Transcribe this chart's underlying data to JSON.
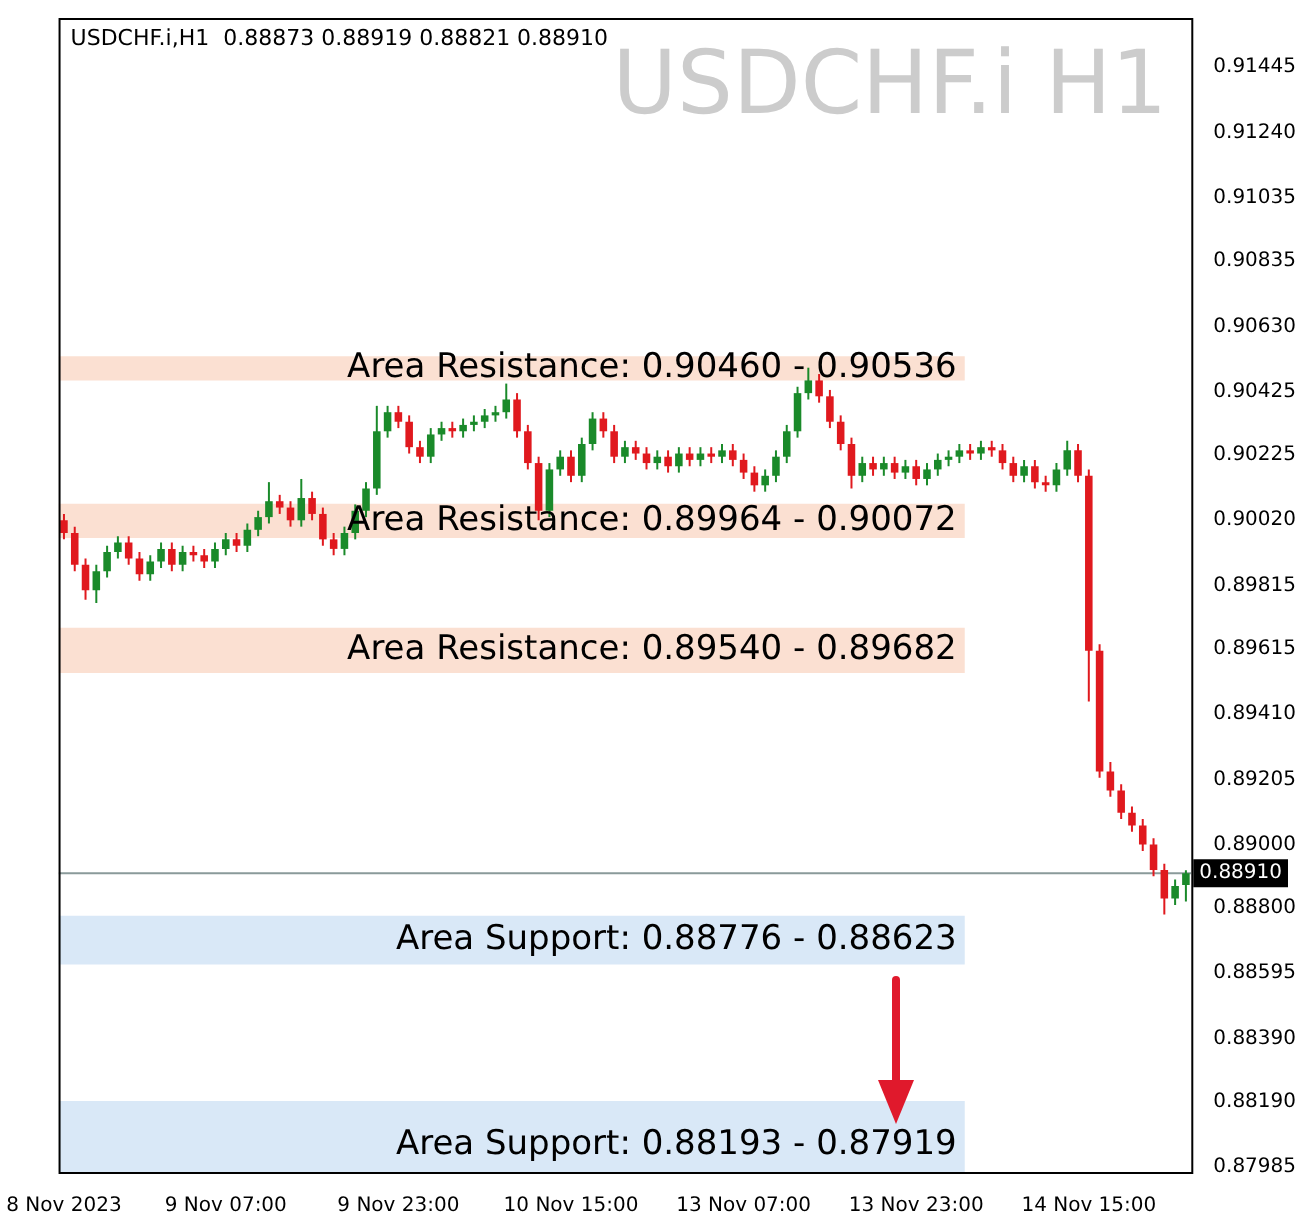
{
  "chart_data": {
    "type": "candlestick",
    "title": "USDCHF.i H1",
    "annotations": [
      "USDCHF.i,H1  0.88873 0.88919 0.88821 0.88910"
    ],
    "categories": [
      "8 Nov 2023",
      null,
      null,
      null,
      null,
      null,
      null,
      null,
      null,
      null,
      null,
      null,
      null,
      null,
      null,
      "9 Nov 07:00",
      null,
      null,
      null,
      null,
      null,
      null,
      null,
      null,
      null,
      null,
      null,
      null,
      null,
      null,
      null,
      "9 Nov 23:00",
      null,
      null,
      null,
      null,
      null,
      null,
      null,
      null,
      null,
      null,
      null,
      null,
      null,
      null,
      null,
      "10 Nov 15:00",
      null,
      null,
      null,
      null,
      null,
      null,
      null,
      null,
      null,
      null,
      null,
      null,
      null,
      null,
      null,
      "13 Nov 07:00",
      null,
      null,
      null,
      null,
      null,
      null,
      null,
      null,
      null,
      null,
      null,
      null,
      null,
      null,
      null,
      "13 Nov 23:00",
      null,
      null,
      null,
      null,
      null,
      null,
      null,
      null,
      null,
      null,
      null,
      null,
      null,
      null,
      null,
      "14 Nov 15:00",
      null,
      null,
      null,
      null,
      null,
      null,
      null,
      null,
      null
    ],
    "ohlc": [
      [
        0.9002,
        0.9004,
        0.8996,
        0.8998
      ],
      [
        0.8998,
        0.9,
        0.8986,
        0.8988
      ],
      [
        0.8988,
        0.899,
        0.8977,
        0.898
      ],
      [
        0.898,
        0.8988,
        0.8976,
        0.8986
      ],
      [
        0.8986,
        0.8994,
        0.8984,
        0.8992
      ],
      [
        0.8992,
        0.8997,
        0.899,
        0.8995
      ],
      [
        0.8995,
        0.8997,
        0.8988,
        0.899
      ],
      [
        0.899,
        0.8992,
        0.8983,
        0.8985
      ],
      [
        0.8985,
        0.8991,
        0.8983,
        0.8989
      ],
      [
        0.8989,
        0.8995,
        0.8987,
        0.8993
      ],
      [
        0.8993,
        0.8995,
        0.8986,
        0.8988
      ],
      [
        0.8988,
        0.8994,
        0.8986,
        0.8992
      ],
      [
        0.8992,
        0.8994,
        0.8989,
        0.8991
      ],
      [
        0.8991,
        0.8993,
        0.8987,
        0.8989
      ],
      [
        0.8989,
        0.8995,
        0.8987,
        0.8993
      ],
      [
        0.8993,
        0.8998,
        0.8991,
        0.8996
      ],
      [
        0.8996,
        0.8998,
        0.8992,
        0.8994
      ],
      [
        0.8994,
        0.9001,
        0.8992,
        0.8999
      ],
      [
        0.8999,
        0.9005,
        0.8997,
        0.9003
      ],
      [
        0.9003,
        0.9014,
        0.9001,
        0.9008
      ],
      [
        0.9008,
        0.901,
        0.9004,
        0.9006
      ],
      [
        0.9006,
        0.9008,
        0.9,
        0.9002
      ],
      [
        0.9002,
        0.9015,
        0.9,
        0.9009
      ],
      [
        0.9009,
        0.9011,
        0.9002,
        0.9004
      ],
      [
        0.9004,
        0.9006,
        0.8994,
        0.8996
      ],
      [
        0.8996,
        0.8998,
        0.8991,
        0.8993
      ],
      [
        0.8993,
        0.9,
        0.8991,
        0.8998
      ],
      [
        0.8998,
        0.9007,
        0.8996,
        0.9005
      ],
      [
        0.9005,
        0.9014,
        0.9003,
        0.9012
      ],
      [
        0.9012,
        0.9038,
        0.901,
        0.903
      ],
      [
        0.903,
        0.9038,
        0.9028,
        0.9036
      ],
      [
        0.9036,
        0.9038,
        0.9031,
        0.9033
      ],
      [
        0.9033,
        0.9035,
        0.9023,
        0.9025
      ],
      [
        0.9025,
        0.9027,
        0.902,
        0.9022
      ],
      [
        0.9022,
        0.9031,
        0.902,
        0.9029
      ],
      [
        0.9029,
        0.9033,
        0.9027,
        0.9031
      ],
      [
        0.9031,
        0.9033,
        0.9028,
        0.903
      ],
      [
        0.903,
        0.9034,
        0.9028,
        0.9032
      ],
      [
        0.9032,
        0.9035,
        0.903,
        0.9033
      ],
      [
        0.9033,
        0.9037,
        0.9031,
        0.9035
      ],
      [
        0.9035,
        0.9038,
        0.9033,
        0.9036
      ],
      [
        0.9036,
        0.9045,
        0.9034,
        0.904
      ],
      [
        0.904,
        0.9042,
        0.9028,
        0.903
      ],
      [
        0.903,
        0.9032,
        0.9018,
        0.902
      ],
      [
        0.902,
        0.9022,
        0.9002,
        0.9005
      ],
      [
        0.9005,
        0.902,
        0.9003,
        0.9018
      ],
      [
        0.9018,
        0.9024,
        0.9016,
        0.9022
      ],
      [
        0.9022,
        0.9024,
        0.9014,
        0.9016
      ],
      [
        0.9016,
        0.9028,
        0.9014,
        0.9026
      ],
      [
        0.9026,
        0.9036,
        0.9024,
        0.9034
      ],
      [
        0.9034,
        0.9036,
        0.9028,
        0.903
      ],
      [
        0.903,
        0.9032,
        0.902,
        0.9022
      ],
      [
        0.9022,
        0.9027,
        0.902,
        0.9025
      ],
      [
        0.9025,
        0.9027,
        0.9021,
        0.9023
      ],
      [
        0.9023,
        0.9025,
        0.9018,
        0.902
      ],
      [
        0.902,
        0.9024,
        0.9018,
        0.9022
      ],
      [
        0.9022,
        0.9024,
        0.9017,
        0.9019
      ],
      [
        0.9019,
        0.9025,
        0.9017,
        0.9023
      ],
      [
        0.9023,
        0.9025,
        0.9019,
        0.9021
      ],
      [
        0.9021,
        0.9025,
        0.9019,
        0.9023
      ],
      [
        0.9023,
        0.9025,
        0.902,
        0.9022
      ],
      [
        0.9022,
        0.9026,
        0.902,
        0.9024
      ],
      [
        0.9024,
        0.9026,
        0.9019,
        0.9021
      ],
      [
        0.9021,
        0.9023,
        0.9015,
        0.9017
      ],
      [
        0.9017,
        0.9019,
        0.9011,
        0.9013
      ],
      [
        0.9013,
        0.9018,
        0.9011,
        0.9016
      ],
      [
        0.9016,
        0.9024,
        0.9014,
        0.9022
      ],
      [
        0.9022,
        0.9032,
        0.902,
        0.903
      ],
      [
        0.903,
        0.9044,
        0.9028,
        0.9042
      ],
      [
        0.9042,
        0.905,
        0.904,
        0.9046
      ],
      [
        0.9046,
        0.9048,
        0.9039,
        0.9041
      ],
      [
        0.9041,
        0.9043,
        0.9031,
        0.9033
      ],
      [
        0.9033,
        0.9035,
        0.9024,
        0.9026
      ],
      [
        0.9026,
        0.9028,
        0.9012,
        0.9016
      ],
      [
        0.9016,
        0.9022,
        0.9014,
        0.902
      ],
      [
        0.902,
        0.9022,
        0.9016,
        0.9018
      ],
      [
        0.9018,
        0.9022,
        0.9016,
        0.902
      ],
      [
        0.902,
        0.9022,
        0.9015,
        0.9017
      ],
      [
        0.9017,
        0.9021,
        0.9015,
        0.9019
      ],
      [
        0.9019,
        0.9021,
        0.9013,
        0.9015
      ],
      [
        0.9015,
        0.902,
        0.9013,
        0.9018
      ],
      [
        0.9018,
        0.9023,
        0.9016,
        0.9021
      ],
      [
        0.9021,
        0.9024,
        0.9019,
        0.9022
      ],
      [
        0.9022,
        0.9026,
        0.902,
        0.9024
      ],
      [
        0.9024,
        0.9026,
        0.9021,
        0.9023
      ],
      [
        0.9023,
        0.9027,
        0.9021,
        0.9025
      ],
      [
        0.9025,
        0.9027,
        0.9022,
        0.9024
      ],
      [
        0.9024,
        0.9026,
        0.9018,
        0.902
      ],
      [
        0.902,
        0.9022,
        0.9014,
        0.9016
      ],
      [
        0.9016,
        0.9021,
        0.9014,
        0.9019
      ],
      [
        0.9019,
        0.9021,
        0.9012,
        0.9014
      ],
      [
        0.9014,
        0.9016,
        0.9011,
        0.9013
      ],
      [
        0.9013,
        0.902,
        0.9011,
        0.9018
      ],
      [
        0.9018,
        0.9027,
        0.9016,
        0.9024
      ],
      [
        0.9024,
        0.9026,
        0.9014,
        0.9016
      ],
      [
        0.9016,
        0.9018,
        0.8945,
        0.8961
      ],
      [
        0.8961,
        0.8963,
        0.8921,
        0.8923
      ],
      [
        0.8923,
        0.8926,
        0.8915,
        0.8917
      ],
      [
        0.8917,
        0.8919,
        0.8908,
        0.891
      ],
      [
        0.891,
        0.8912,
        0.8904,
        0.8906
      ],
      [
        0.8906,
        0.8908,
        0.8898,
        0.89
      ],
      [
        0.89,
        0.8902,
        0.889,
        0.8892
      ],
      [
        0.8892,
        0.8894,
        0.8878,
        0.8883
      ],
      [
        0.8883,
        0.8889,
        0.8881,
        0.8887
      ],
      [
        0.88873,
        0.88919,
        0.88821,
        0.8891
      ]
    ],
    "colors": [
      "#e0191e",
      "#e0191e",
      "#e0191e",
      "#1a8a2a",
      "#1a8a2a",
      "#1a8a2a",
      "#e0191e",
      "#e0191e",
      "#1a8a2a",
      "#1a8a2a",
      "#e0191e",
      "#1a8a2a",
      "#e0191e",
      "#e0191e",
      "#1a8a2a",
      "#1a8a2a",
      "#e0191e",
      "#1a8a2a",
      "#1a8a2a",
      "#1a8a2a",
      "#e0191e",
      "#e0191e",
      "#1a8a2a",
      "#e0191e",
      "#e0191e",
      "#e0191e",
      "#1a8a2a",
      "#1a8a2a",
      "#1a8a2a",
      "#1a8a2a",
      "#1a8a2a",
      "#e0191e",
      "#e0191e",
      "#e0191e",
      "#1a8a2a",
      "#1a8a2a",
      "#e0191e",
      "#1a8a2a",
      "#1a8a2a",
      "#1a8a2a",
      "#1a8a2a",
      "#1a8a2a",
      "#e0191e",
      "#e0191e",
      "#e0191e",
      "#1a8a2a",
      "#1a8a2a",
      "#e0191e",
      "#1a8a2a",
      "#1a8a2a",
      "#e0191e",
      "#e0191e",
      "#1a8a2a",
      "#e0191e",
      "#e0191e",
      "#1a8a2a",
      "#e0191e",
      "#1a8a2a",
      "#e0191e",
      "#1a8a2a",
      "#e0191e",
      "#1a8a2a",
      "#e0191e",
      "#e0191e",
      "#e0191e",
      "#1a8a2a",
      "#1a8a2a",
      "#1a8a2a",
      "#1a8a2a",
      "#1a8a2a",
      "#e0191e",
      "#e0191e",
      "#e0191e",
      "#e0191e",
      "#1a8a2a",
      "#e0191e",
      "#1a8a2a",
      "#e0191e",
      "#1a8a2a",
      "#e0191e",
      "#1a8a2a",
      "#1a8a2a",
      "#1a8a2a",
      "#1a8a2a",
      "#e0191e",
      "#1a8a2a",
      "#e0191e",
      "#e0191e",
      "#e0191e",
      "#1a8a2a",
      "#e0191e",
      "#e0191e",
      "#1a8a2a",
      "#1a8a2a",
      "#e0191e",
      "#e0191e",
      "#e0191e",
      "#e0191e",
      "#e0191e",
      "#e0191e",
      "#e0191e",
      "#e0191e",
      "#e0191e",
      "#1a8a2a",
      "#1a8a2a"
    ],
    "ylim": [
      0.8797,
      0.916
    ],
    "yticks": [
      {
        "value": 0.91445,
        "label": "0.91445"
      },
      {
        "value": 0.9124,
        "label": "0.91240"
      },
      {
        "value": 0.91035,
        "label": "0.91035"
      },
      {
        "value": 0.90835,
        "label": "0.90835"
      },
      {
        "value": 0.9063,
        "label": "0.90630"
      },
      {
        "value": 0.90425,
        "label": "0.90425"
      },
      {
        "value": 0.90225,
        "label": "0.90225"
      },
      {
        "value": 0.9002,
        "label": "0.90020"
      },
      {
        "value": 0.89815,
        "label": "0.89815"
      },
      {
        "value": 0.89615,
        "label": "0.89615"
      },
      {
        "value": 0.8941,
        "label": "0.89410"
      },
      {
        "value": 0.89205,
        "label": "0.89205"
      },
      {
        "value": 0.89,
        "label": "0.89000"
      },
      {
        "value": 0.888,
        "label": "0.88800"
      },
      {
        "value": 0.88595,
        "label": "0.88595"
      },
      {
        "value": 0.8839,
        "label": "0.88390"
      },
      {
        "value": 0.8819,
        "label": "0.88190"
      },
      {
        "value": 0.87985,
        "label": "0.87985"
      }
    ],
    "bands": [
      {
        "axis": "y",
        "from": 0.9046,
        "to": 0.90536,
        "label": "Area Resistance: 0.90460 - 0.90536",
        "color": "#fbe0d2"
      },
      {
        "axis": "y",
        "from": 0.89964,
        "to": 0.90072,
        "label": "Area Resistance: 0.89964 - 0.90072",
        "color": "#fbe0d2"
      },
      {
        "axis": "y",
        "from": 0.8954,
        "to": 0.89682,
        "label": "Area Resistance: 0.89540 - 0.89682",
        "color": "#fbe0d2"
      },
      {
        "axis": "y",
        "from": 0.88623,
        "to": 0.88776,
        "label": "Area Support: 0.88776 - 0.88623",
        "color": "#d9e8f7"
      },
      {
        "axis": "y",
        "from": 0.87919,
        "to": 0.88193,
        "label": "Area Support: 0.88193 - 0.87919",
        "color": "#d9e8f7"
      }
    ],
    "ref_lines": [
      {
        "axis": "y",
        "value": 0.8891,
        "label": "0.88910",
        "color": "#8a9a9a"
      }
    ]
  }
}
